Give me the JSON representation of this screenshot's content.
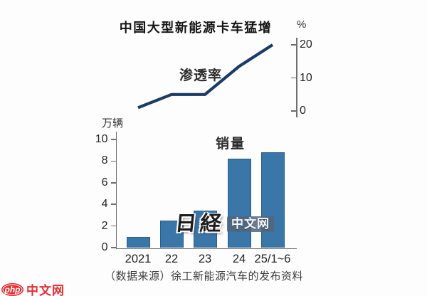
{
  "title": "中国大型新能源卡车猛增",
  "source_note": "（数据来源）徐工新能源汽车的发布资料",
  "watermark": {
    "logo_text": "日経",
    "site_text": "中文网"
  },
  "corner_logo": {
    "badge_text": "php",
    "site_text": "中文网"
  },
  "colors": {
    "bar_fill": "#3b76a8",
    "bar_edge": "#2b5c89",
    "line": "#1b3a66",
    "axis": "#6e6e6e",
    "logo_red": "#e62f34"
  },
  "chart_data": [
    {
      "type": "line",
      "label": "渗透率",
      "unit": "%",
      "x": [
        "2021",
        "22",
        "23",
        "24",
        "25/1~6"
      ],
      "values": [
        1,
        5,
        5,
        13.5,
        20
      ],
      "yticks": [
        0,
        10,
        20
      ],
      "ylim": [
        0,
        22
      ],
      "axis_side": "right",
      "grid": false,
      "legend": "inline-label"
    },
    {
      "type": "bar",
      "label": "销量",
      "unit": "万辆",
      "categories": [
        "2021",
        "22",
        "23",
        "24",
        "25/1~6"
      ],
      "values": [
        1.0,
        2.5,
        3.4,
        8.2,
        8.8
      ],
      "yticks": [
        0,
        2,
        4,
        6,
        8,
        10
      ],
      "ylim": [
        0,
        10.5
      ],
      "axis_side": "left",
      "grid": false,
      "legend": "inline-label"
    }
  ]
}
